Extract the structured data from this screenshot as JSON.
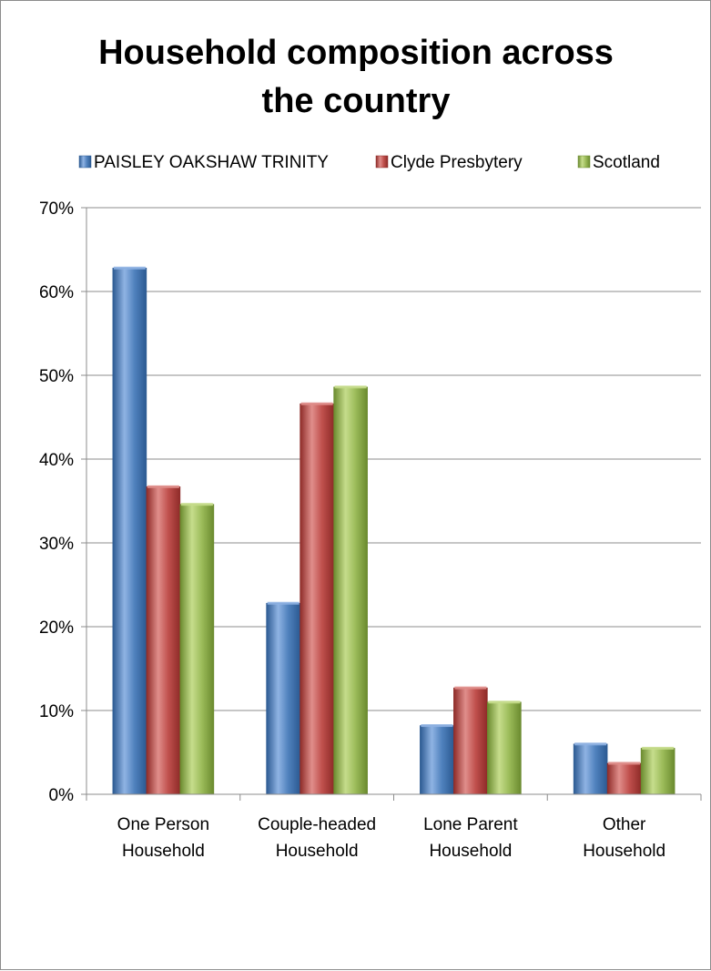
{
  "chart_data": {
    "type": "bar",
    "title_lines": [
      "Household composition across",
      "the country"
    ],
    "categories": [
      [
        "One Person",
        "Household"
      ],
      [
        "Couple-headed",
        "Household"
      ],
      [
        "Lone Parent",
        "Household"
      ],
      [
        "Other",
        "Household"
      ]
    ],
    "series": [
      {
        "name": "PAISLEY OAKSHAW TRINITY",
        "values": [
          62.8,
          22.8,
          8.2,
          6.0
        ]
      },
      {
        "name": "Clyde Presbytery",
        "values": [
          36.7,
          46.6,
          12.7,
          3.7
        ]
      },
      {
        "name": "Scotland",
        "values": [
          34.6,
          48.6,
          11.0,
          5.5
        ]
      }
    ],
    "ylim": [
      0,
      70
    ],
    "yticks": [
      0,
      10,
      20,
      30,
      40,
      50,
      60,
      70
    ],
    "ytick_suffix": "%",
    "grid": true,
    "legend_position": "top",
    "colors": [
      "#4f81bd",
      "#c0504d",
      "#9bbb59"
    ],
    "colors_dark": [
      "#2c5a92",
      "#8e2b28",
      "#6a8a2e"
    ],
    "colors_light": [
      "#8fb3e3",
      "#e08e8b",
      "#c6dd8c"
    ]
  }
}
